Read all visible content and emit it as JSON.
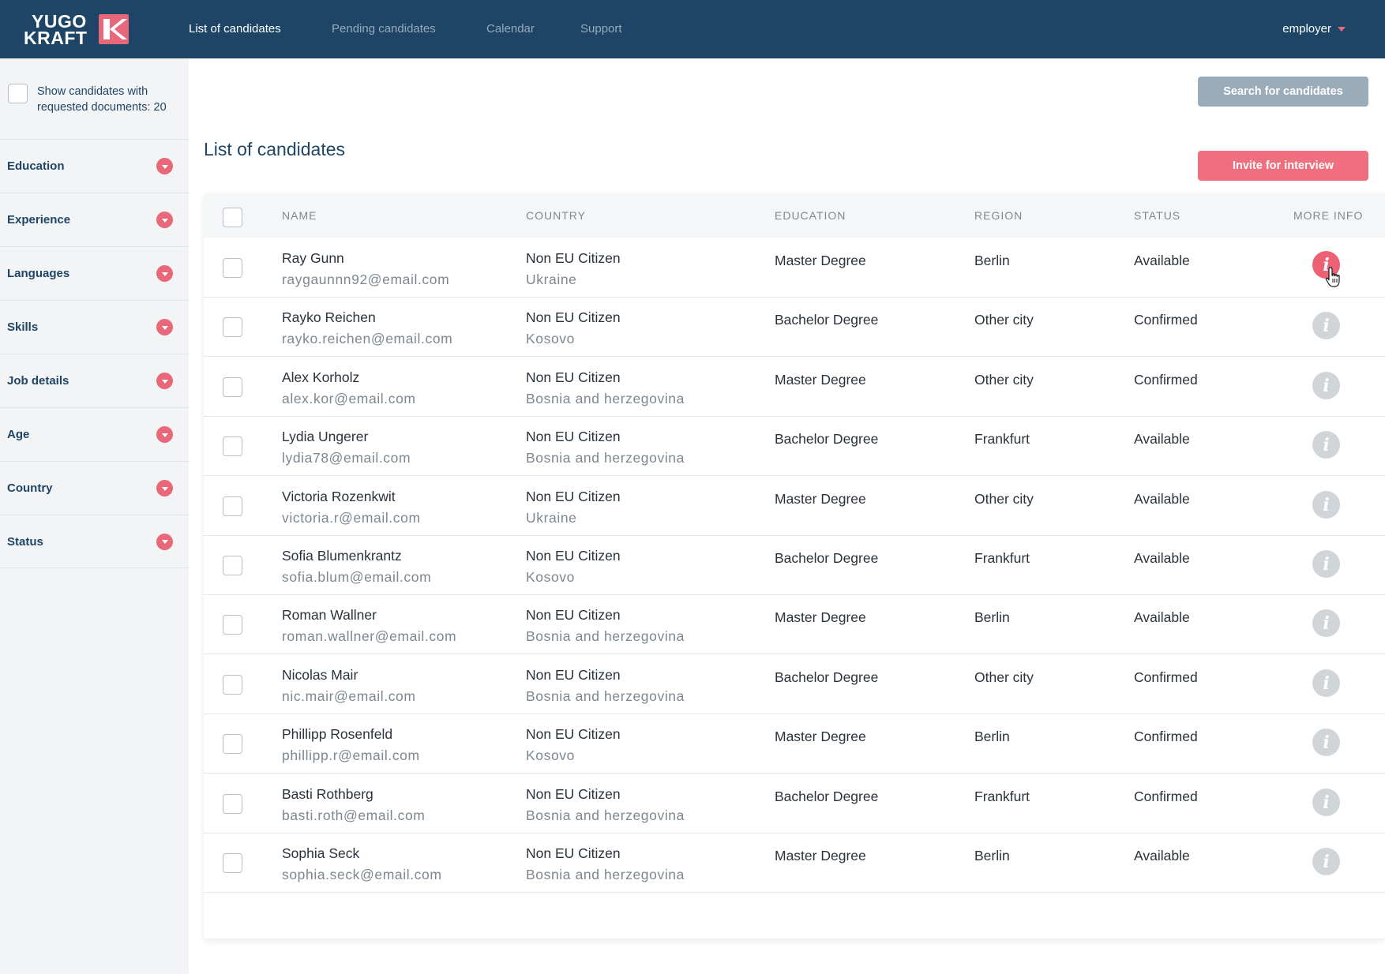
{
  "brand": {
    "line1": "YUGO",
    "line2": "KRAFT",
    "accent_color": "#e8687a",
    "nav_color": "#1e4566"
  },
  "nav": {
    "items": [
      "List of candidates",
      "Pending candidates",
      "Calendar",
      "Support"
    ],
    "active_index": 0,
    "user_label": "employer"
  },
  "sidebar": {
    "documents_filter_label": "Show candidates with requested documents: 20",
    "documents_filter_checked": false,
    "filters": [
      "Education",
      "Experience",
      "Languages",
      "Skills",
      "Job details",
      "Age",
      "Country",
      "Status"
    ]
  },
  "main": {
    "title": "List of candidates",
    "search_button": "Search for candidates",
    "invite_button": "Invite for interview"
  },
  "table": {
    "headers": {
      "name": "NAME",
      "country": "COUNTRY",
      "education": "EDUCATION",
      "region": "REGION",
      "status": "STATUS",
      "more_info": "MORE INFO"
    },
    "rows": [
      {
        "name": "Ray Gunn",
        "email": "raygaunnn92@email.com",
        "citizenship": "Non EU Citizen",
        "country": "Ukraine",
        "education": "Master Degree",
        "region": "Berlin",
        "status": "Available",
        "info_active": true
      },
      {
        "name": "Rayko Reichen",
        "email": "rayko.reichen@email.com",
        "citizenship": "Non EU Citizen",
        "country": "Kosovo",
        "education": "Bachelor Degree",
        "region": "Other city",
        "status": "Confirmed",
        "info_active": false
      },
      {
        "name": "Alex Korholz",
        "email": "alex.kor@email.com",
        "citizenship": "Non EU Citizen",
        "country": "Bosnia and herzegovina",
        "education": "Master Degree",
        "region": "Other city",
        "status": "Confirmed",
        "info_active": false
      },
      {
        "name": "Lydia Ungerer",
        "email": "lydia78@email.com",
        "citizenship": "Non EU Citizen",
        "country": "Bosnia and herzegovina",
        "education": "Bachelor Degree",
        "region": "Frankfurt",
        "status": "Available",
        "info_active": false
      },
      {
        "name": "Victoria Rozenkwit",
        "email": "victoria.r@email.com",
        "citizenship": "Non EU Citizen",
        "country": "Ukraine",
        "education": "Master Degree",
        "region": "Other city",
        "status": "Available",
        "info_active": false
      },
      {
        "name": "Sofia Blumenkrantz",
        "email": "sofia.blum@email.com",
        "citizenship": "Non EU Citizen",
        "country": "Kosovo",
        "education": "Bachelor Degree",
        "region": "Frankfurt",
        "status": "Available",
        "info_active": false
      },
      {
        "name": "Roman Wallner",
        "email": "roman.wallner@email.com",
        "citizenship": "Non EU Citizen",
        "country": "Bosnia and herzegovina",
        "education": "Master Degree",
        "region": "Berlin",
        "status": "Available",
        "info_active": false
      },
      {
        "name": "Nicolas Mair",
        "email": "nic.mair@email.com",
        "citizenship": "Non EU Citizen",
        "country": "Bosnia and herzegovina",
        "education": "Bachelor Degree",
        "region": "Other city",
        "status": "Confirmed",
        "info_active": false
      },
      {
        "name": "Phillipp Rosenfeld",
        "email": "phillipp.r@email.com",
        "citizenship": "Non EU Citizen",
        "country": "Kosovo",
        "education": "Master Degree",
        "region": "Berlin",
        "status": "Confirmed",
        "info_active": false
      },
      {
        "name": "Basti Rothberg",
        "email": "basti.roth@email.com",
        "citizenship": "Non EU Citizen",
        "country": "Bosnia and herzegovina",
        "education": "Bachelor Degree",
        "region": "Frankfurt",
        "status": "Confirmed",
        "info_active": false
      },
      {
        "name": "Sophia Seck",
        "email": "sophia.seck@email.com",
        "citizenship": "Non EU Citizen",
        "country": "Bosnia and herzegovina",
        "education": "Master Degree",
        "region": "Berlin",
        "status": "Available",
        "info_active": false
      }
    ]
  },
  "icons": {
    "filter_toggle": "chevron-down-icon",
    "more_info": "info-icon",
    "cursor": "hand-pointer-icon",
    "user_caret": "caret-down-icon"
  }
}
